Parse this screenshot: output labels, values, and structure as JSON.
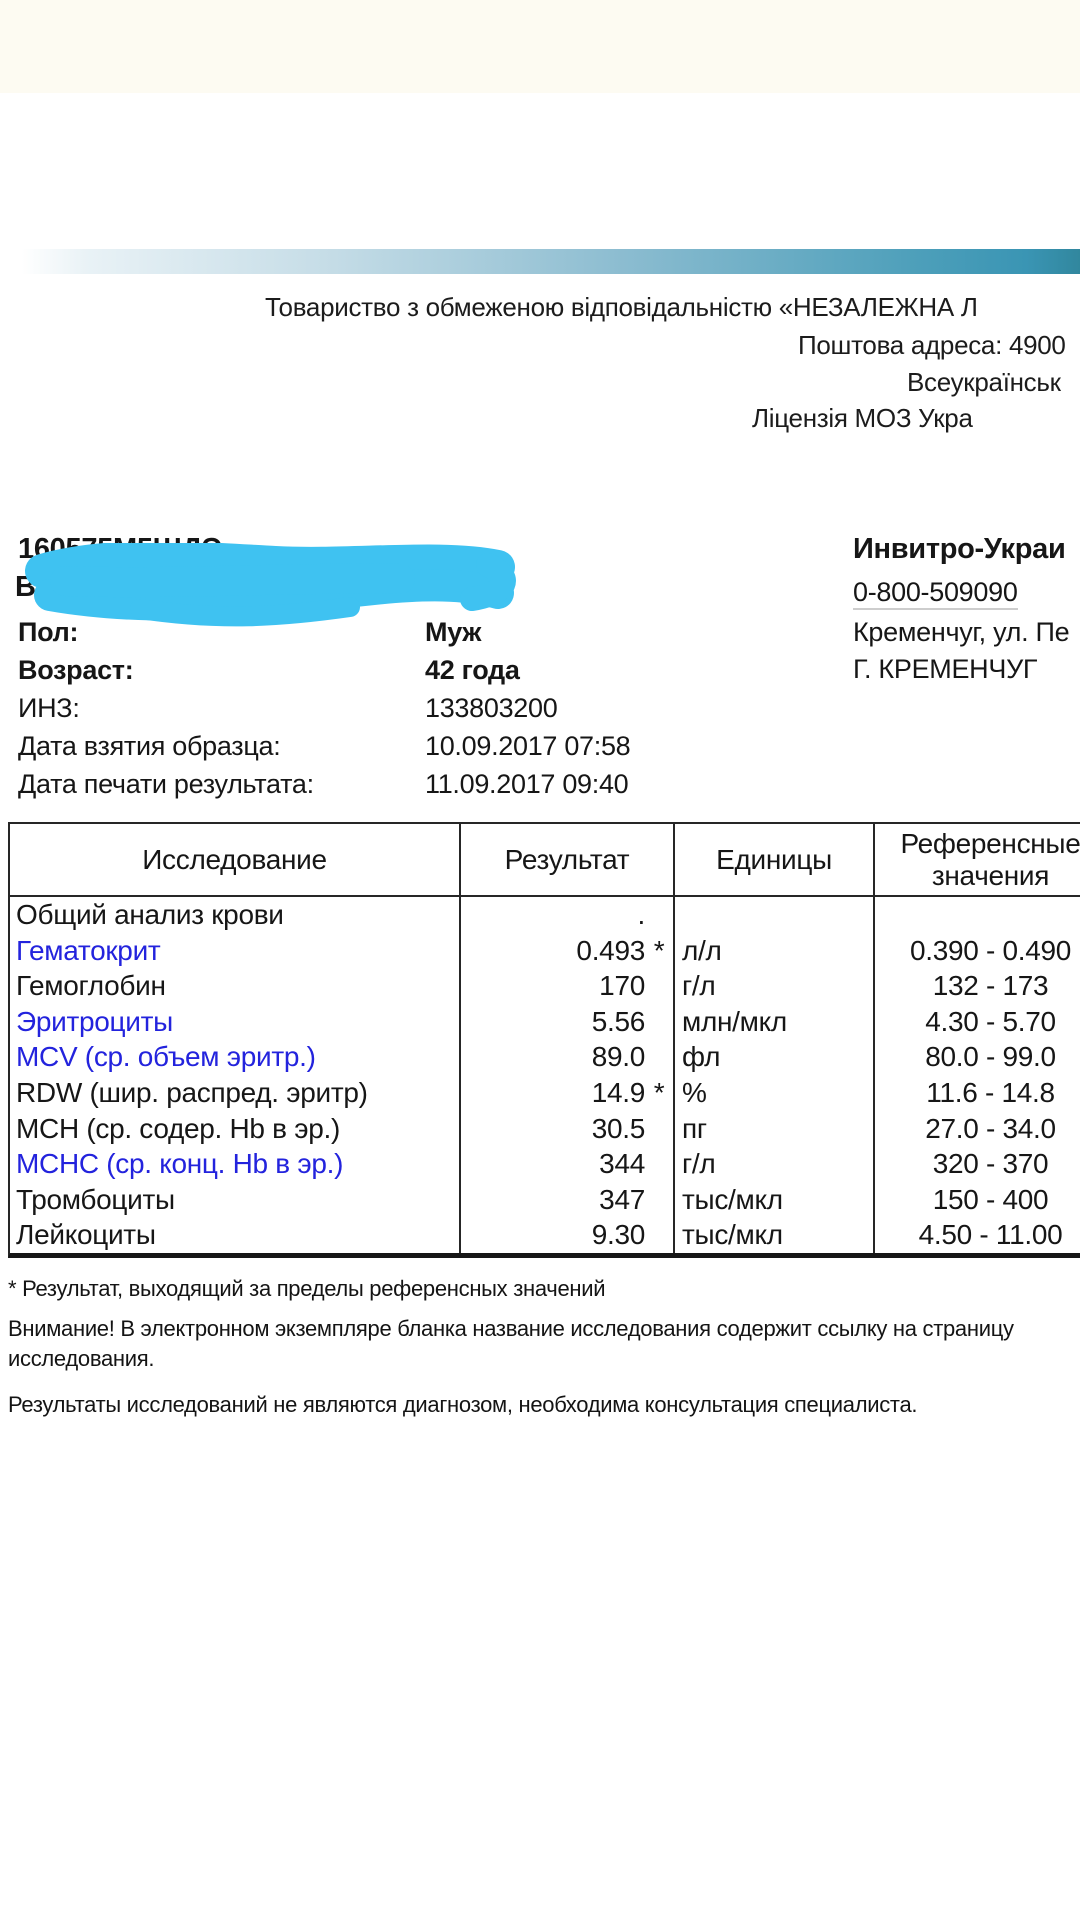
{
  "colors": {
    "link_blue": "#2323dd",
    "bar_teal": "#3a95b4",
    "scribble_cyan": "#3fc2f1"
  },
  "letterhead": {
    "line1": "Товариство з обмеженою відповідальністю «НЕЗАЛЕЖНА Л",
    "line2": "Поштова адреса: 4900",
    "line3": "Всеукраїнськ",
    "line4": "Ліцензія МОЗ Укра"
  },
  "patient": {
    "order_code": "160575М5ШДЭ",
    "name_remnant": "В",
    "rows": [
      {
        "label": "Пол:",
        "value": "Муж",
        "bold": true
      },
      {
        "label": "Возраст:",
        "value": "42 года",
        "bold": true
      },
      {
        "label": "ИНЗ:",
        "value": "133803200",
        "bold": false
      },
      {
        "label": "Дата взятия образца:",
        "value": "10.09.2017 07:58",
        "bold": false
      },
      {
        "label": "Дата печати результата:",
        "value": "11.09.2017 09:40",
        "bold": false
      }
    ]
  },
  "clinic": {
    "name": "Инвитро-Украи",
    "phone": "0-800-509090",
    "address_line1": "Кременчуг, ул. Пе",
    "address_line2": "Г. КРЕМЕНЧУГ"
  },
  "results_table": {
    "headers": [
      "Исследование",
      "Результат",
      "Единицы",
      "Референсные значения"
    ],
    "rows": [
      {
        "name": "Общий анализ крови",
        "result": ".",
        "flag": "",
        "units": "",
        "reference": "",
        "link": false
      },
      {
        "name": "Гематокрит",
        "result": "0.493",
        "flag": "*",
        "units": "л/л",
        "reference": "0.390 - 0.490",
        "link": true
      },
      {
        "name": "Гемоглобин",
        "result": "170",
        "flag": "",
        "units": "г/л",
        "reference": "132 - 173",
        "link": false
      },
      {
        "name": "Эритроциты",
        "result": "5.56",
        "flag": "",
        "units": "млн/мкл",
        "reference": "4.30 - 5.70",
        "link": true
      },
      {
        "name": "MCV (ср. объем эритр.)",
        "result": "89.0",
        "flag": "",
        "units": "фл",
        "reference": "80.0 - 99.0",
        "link": true
      },
      {
        "name": "RDW (шир. распред. эритр)",
        "result": "14.9",
        "flag": "*",
        "units": "%",
        "reference": "11.6 - 14.8",
        "link": false
      },
      {
        "name": "MCH (ср. содер. Hb в эр.)",
        "result": "30.5",
        "flag": "",
        "units": "пг",
        "reference": "27.0 - 34.0",
        "link": false
      },
      {
        "name": "MCHC (ср. конц. Hb в эр.)",
        "result": "344",
        "flag": "",
        "units": "г/л",
        "reference": "320 - 370",
        "link": true
      },
      {
        "name": "Тромбоциты",
        "result": "347",
        "flag": "",
        "units": "тыс/мкл",
        "reference": "150 - 400",
        "link": false
      },
      {
        "name": "Лейкоциты",
        "result": "9.30",
        "flag": "",
        "units": "тыс/мкл",
        "reference": "4.50 - 11.00",
        "link": false
      }
    ]
  },
  "footnotes": {
    "out_of_range": "* Результат, выходящий за пределы референсных значений",
    "attention": "Внимание! В электронном экземпляре бланка название исследования содержит ссылку на страницу исследования.",
    "disclaimer": "Результаты исследований не являются диагнозом, необходима консультация специалиста."
  }
}
